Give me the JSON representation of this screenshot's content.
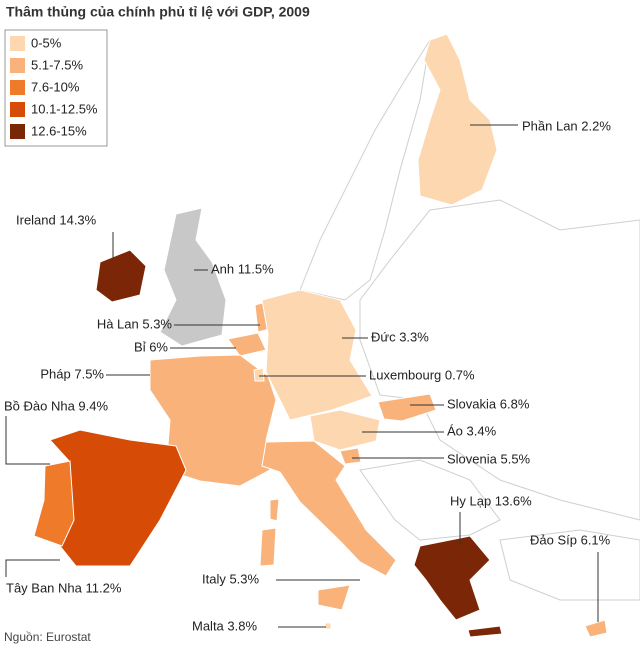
{
  "title": "Thâm thủng của chính phủ tỉ lệ với GDP, 2009",
  "legend": [
    {
      "label": "0-5%",
      "color": "#fdd7b0"
    },
    {
      "label": "5.1-7.5%",
      "color": "#f9b27a"
    },
    {
      "label": "7.6-10%",
      "color": "#ef7a2a"
    },
    {
      "label": "10.1-12.5%",
      "color": "#d64b06"
    },
    {
      "label": "12.6-15%",
      "color": "#7b2607"
    }
  ],
  "countries": [
    {
      "label": "Phần Lan 2.2%",
      "value": 2.2,
      "color": "#fdd7b0"
    },
    {
      "label": "Ireland 14.3%",
      "value": 14.3,
      "color": "#7b2607"
    },
    {
      "label": "Anh 11.5%",
      "value": 11.5,
      "color": "#c8c8c8"
    },
    {
      "label": "Hà Lan 5.3%",
      "value": 5.3,
      "color": "#f9b27a"
    },
    {
      "label": "Bỉ 6%",
      "value": 6,
      "color": "#f9b27a"
    },
    {
      "label": "Đức 3.3%",
      "value": 3.3,
      "color": "#fdd7b0"
    },
    {
      "label": "Pháp 7.5%",
      "value": 7.5,
      "color": "#f9b27a"
    },
    {
      "label": "Luxembourg 0.7%",
      "value": 0.7,
      "color": "#fdd7b0"
    },
    {
      "label": "Bồ Đào Nha 9.4%",
      "value": 9.4,
      "color": "#ef7a2a"
    },
    {
      "label": "Slovakia 6.8%",
      "value": 6.8,
      "color": "#f9b27a"
    },
    {
      "label": "Áo 3.4%",
      "value": 3.4,
      "color": "#fdd7b0"
    },
    {
      "label": "Slovenia 5.5%",
      "value": 5.5,
      "color": "#f9b27a"
    },
    {
      "label": "Hy Lạp 13.6%",
      "value": 13.6,
      "color": "#7b2607"
    },
    {
      "label": "Đảo Síp 6.1%",
      "value": 6.1,
      "color": "#f9b27a"
    },
    {
      "label": "Tây Ban Nha 11.2%",
      "value": 11.2,
      "color": "#d64b06"
    },
    {
      "label": "Italy 5.3%",
      "value": 5.3,
      "color": "#f9b27a"
    },
    {
      "label": "Malta 3.8%",
      "value": 3.8,
      "color": "#fdd7b0"
    }
  ],
  "source": "Nguồn: Eurostat"
}
